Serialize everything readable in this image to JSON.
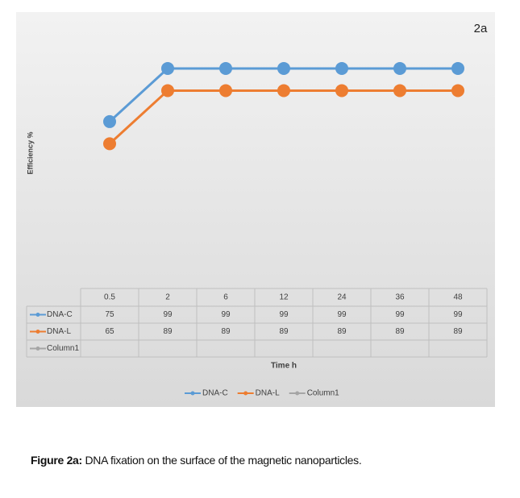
{
  "chart_data": {
    "type": "line",
    "panel_label": "2a",
    "y_label": "Efficiency %",
    "x_label": "Time h",
    "categories": [
      "0.5",
      "2",
      "6",
      "12",
      "24",
      "36",
      "48"
    ],
    "series": [
      {
        "name": "DNA-C",
        "color": "#5b9bd5",
        "values": [
          75,
          99,
          99,
          99,
          99,
          99,
          99
        ]
      },
      {
        "name": "DNA-L",
        "color": "#ed7d31",
        "values": [
          65,
          89,
          89,
          89,
          89,
          89,
          89
        ]
      },
      {
        "name": "Column1",
        "color": "#a5a5a5",
        "values": [
          null,
          null,
          null,
          null,
          null,
          null,
          null
        ]
      }
    ],
    "ylim": [
      0,
      115
    ],
    "legend": "bottom",
    "data_table": true
  },
  "caption": {
    "label": "Figure 2a:",
    "text": "DNA fixation on the surface of the magnetic nanoparticles."
  }
}
